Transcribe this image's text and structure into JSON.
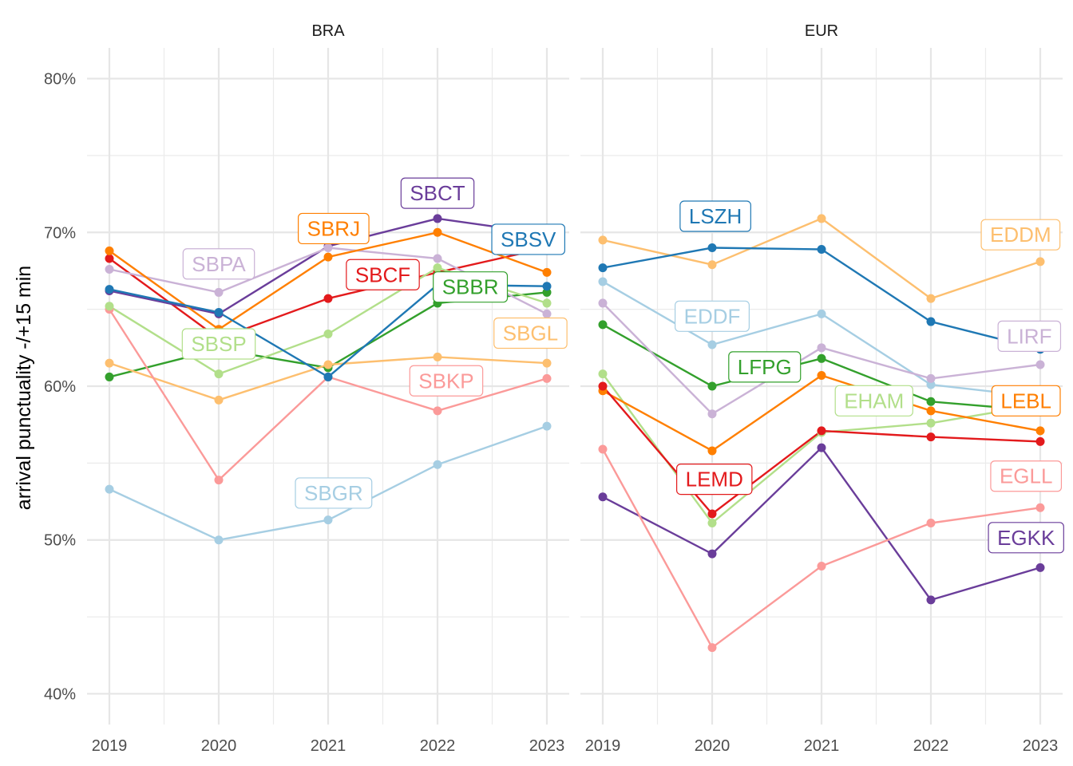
{
  "chart_data": {
    "type": "line",
    "ylabel": "arrival punctuality -/+15 min",
    "xlabel": "",
    "x": [
      2019,
      2020,
      2021,
      2022,
      2023
    ],
    "x_tick_labels": [
      "2019",
      "2020",
      "2021",
      "2022",
      "2023"
    ],
    "y_ticks": [
      0.4,
      0.5,
      0.6,
      0.7,
      0.8
    ],
    "y_tick_labels": [
      "40%",
      "50%",
      "60%",
      "70%",
      "80%"
    ],
    "ylim": [
      0.38,
      0.82
    ],
    "grid": true,
    "legend": "none (direct labels)",
    "panels": [
      {
        "title": "BRA",
        "series": [
          {
            "name": "SBBR",
            "color": "#33A02C",
            "values": [
              0.606,
              0.624,
              0.612,
              0.654,
              0.661
            ]
          },
          {
            "name": "SBCF",
            "color": "#E31A1C",
            "values": [
              0.683,
              0.631,
              0.657,
              0.674,
              0.69
            ]
          },
          {
            "name": "SBCT",
            "color": "#6A3D9A",
            "values": [
              0.662,
              0.647,
              0.691,
              0.709,
              0.699
            ]
          },
          {
            "name": "SBGL",
            "color": "#FDBF6F",
            "values": [
              0.615,
              0.591,
              0.614,
              0.619,
              0.615
            ]
          },
          {
            "name": "SBGR",
            "color": "#A6CEE3",
            "values": [
              0.533,
              0.5,
              0.513,
              0.549,
              0.574
            ]
          },
          {
            "name": "SBKP",
            "color": "#FB9A99",
            "values": [
              0.65,
              0.539,
              0.606,
              0.584,
              0.605
            ]
          },
          {
            "name": "SBPA",
            "color": "#CAB2D6",
            "values": [
              0.676,
              0.661,
              0.69,
              0.683,
              0.647
            ]
          },
          {
            "name": "SBRJ",
            "color": "#FF7F00",
            "values": [
              0.688,
              0.637,
              0.684,
              0.7,
              0.674
            ]
          },
          {
            "name": "SBSP",
            "color": "#B2DF8A",
            "values": [
              0.652,
              0.608,
              0.634,
              0.677,
              0.654
            ]
          },
          {
            "name": "SBSV",
            "color": "#1F78B4",
            "values": [
              0.663,
              0.648,
              0.606,
              0.666,
              0.665
            ]
          }
        ]
      },
      {
        "title": "EUR",
        "series": [
          {
            "name": "EDDF",
            "color": "#A6CEE3",
            "values": [
              0.668,
              0.627,
              0.647,
              0.601,
              0.593
            ]
          },
          {
            "name": "EDDM",
            "color": "#FDBF6F",
            "values": [
              0.695,
              0.679,
              0.709,
              0.657,
              0.681
            ]
          },
          {
            "name": "EGKK",
            "color": "#6A3D9A",
            "values": [
              0.528,
              0.491,
              0.56,
              0.461,
              0.482
            ]
          },
          {
            "name": "EGLL",
            "color": "#FB9A99",
            "values": [
              0.559,
              0.43,
              0.483,
              0.511,
              0.521
            ]
          },
          {
            "name": "EHAM",
            "color": "#B2DF8A",
            "values": [
              0.608,
              0.511,
              0.57,
              0.576,
              0.588
            ]
          },
          {
            "name": "LEBL",
            "color": "#FF7F00",
            "values": [
              0.597,
              0.558,
              0.607,
              0.584,
              0.571
            ]
          },
          {
            "name": "LEMD",
            "color": "#E31A1C",
            "values": [
              0.6,
              0.517,
              0.571,
              0.567,
              0.564
            ]
          },
          {
            "name": "LFPG",
            "color": "#33A02C",
            "values": [
              0.64,
              0.6,
              0.618,
              0.59,
              0.584
            ]
          },
          {
            "name": "LIRF",
            "color": "#CAB2D6",
            "values": [
              0.654,
              0.582,
              0.625,
              0.605,
              0.614
            ]
          },
          {
            "name": "LSZH",
            "color": "#1F78B4",
            "values": [
              0.677,
              0.69,
              0.689,
              0.642,
              0.624
            ]
          }
        ]
      }
    ],
    "labels": [
      {
        "text": "SBCT",
        "panel": 0,
        "x": 2022.0,
        "y": 0.7255
      },
      {
        "text": "SBRJ",
        "panel": 0,
        "x": 2021.05,
        "y": 0.7025
      },
      {
        "text": "SBSV",
        "panel": 0,
        "x": 2022.83,
        "y": 0.6955
      },
      {
        "text": "SBPA",
        "panel": 0,
        "x": 2020.0,
        "y": 0.6795
      },
      {
        "text": "SBCF",
        "panel": 0,
        "x": 2021.5,
        "y": 0.6725
      },
      {
        "text": "SBBR",
        "panel": 0,
        "x": 2022.3,
        "y": 0.6645
      },
      {
        "text": "SBGL",
        "panel": 0,
        "x": 2022.85,
        "y": 0.6345
      },
      {
        "text": "SBSP",
        "panel": 0,
        "x": 2020.0,
        "y": 0.6275
      },
      {
        "text": "SBKP",
        "panel": 0,
        "x": 2022.08,
        "y": 0.6035
      },
      {
        "text": "SBGR",
        "panel": 0,
        "x": 2021.05,
        "y": 0.5305
      },
      {
        "text": "LSZH",
        "panel": 1,
        "x": 2020.03,
        "y": 0.7105
      },
      {
        "text": "EDDM",
        "panel": 1,
        "x": 2022.82,
        "y": 0.6985
      },
      {
        "text": "EDDF",
        "panel": 1,
        "x": 2020.0,
        "y": 0.6455
      },
      {
        "text": "LIRF",
        "panel": 1,
        "x": 2022.9,
        "y": 0.6325
      },
      {
        "text": "LFPG",
        "panel": 1,
        "x": 2020.48,
        "y": 0.6125
      },
      {
        "text": "EHAM",
        "panel": 1,
        "x": 2021.48,
        "y": 0.5905
      },
      {
        "text": "LEBL",
        "panel": 1,
        "x": 2022.87,
        "y": 0.5905
      },
      {
        "text": "LEMD",
        "panel": 1,
        "x": 2020.02,
        "y": 0.5395
      },
      {
        "text": "EGLL",
        "panel": 1,
        "x": 2022.87,
        "y": 0.5415
      },
      {
        "text": "EGKK",
        "panel": 1,
        "x": 2022.87,
        "y": 0.5015
      }
    ]
  }
}
